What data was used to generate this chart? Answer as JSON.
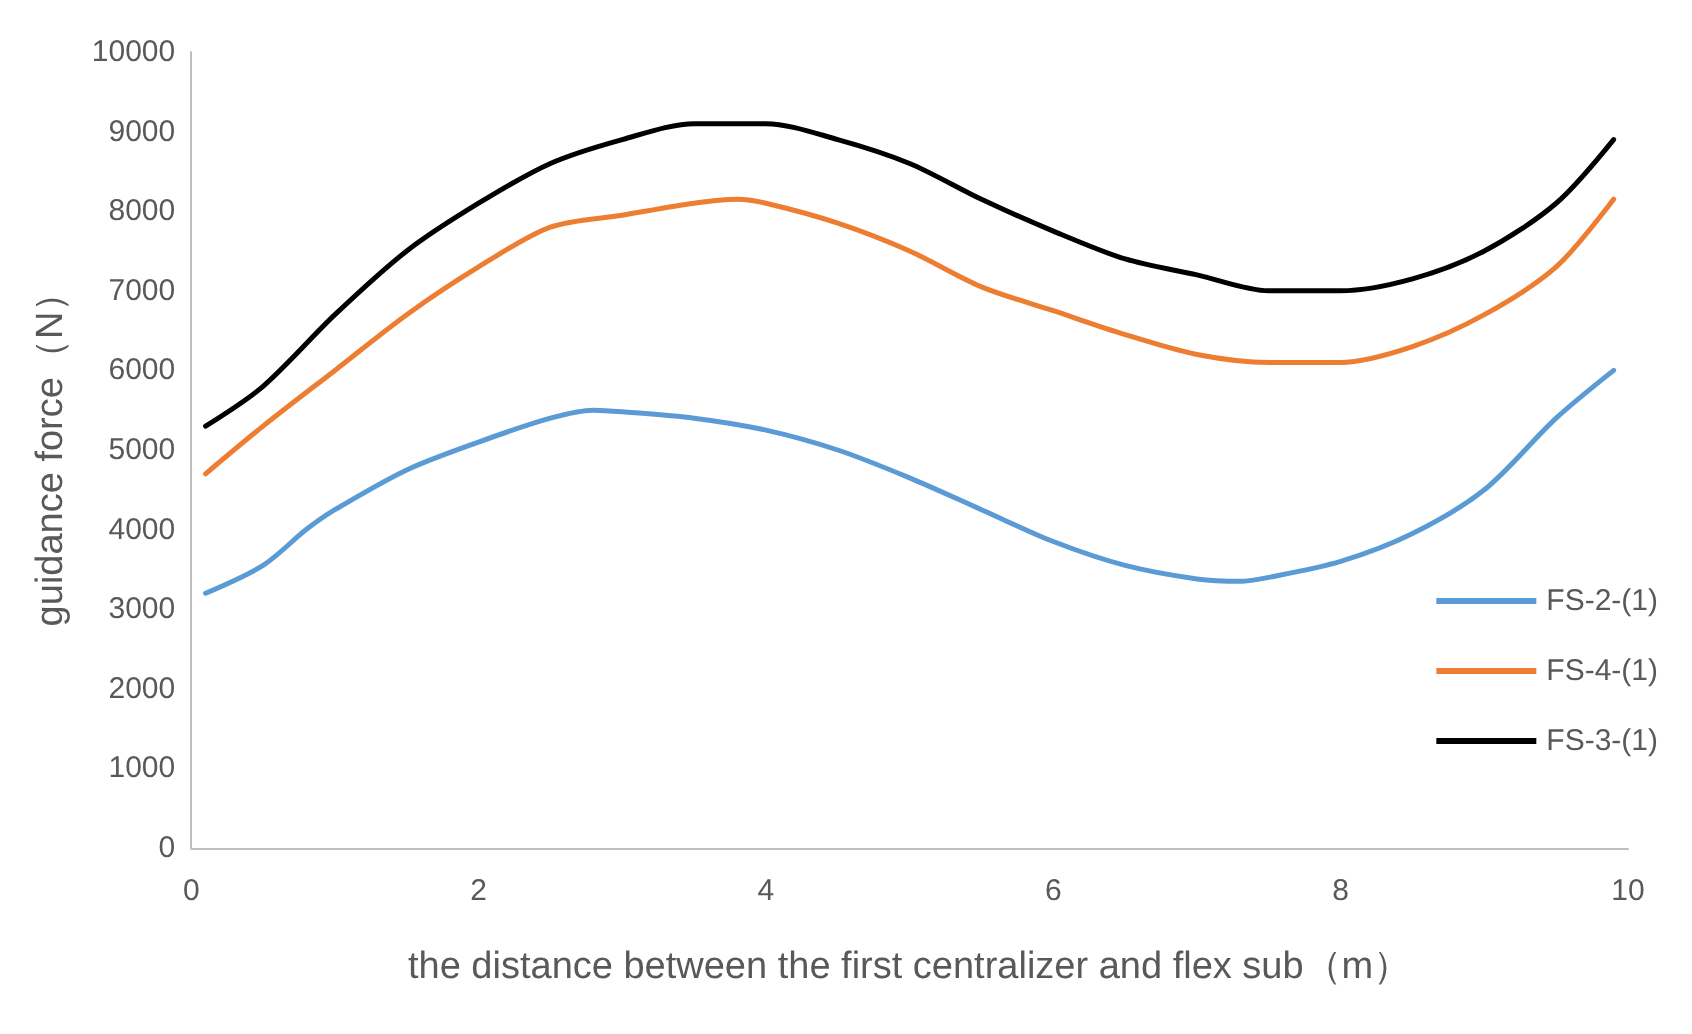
{
  "chart_data": {
    "type": "line",
    "xlabel": "the distance between the first centralizer and flex sub（m）",
    "ylabel": "guidance force（N）",
    "xlim": [
      0,
      10
    ],
    "xticks": [
      0,
      2,
      4,
      6,
      8,
      10
    ],
    "ylim": [
      0,
      10000
    ],
    "yticks": [
      0,
      1000,
      2000,
      3000,
      4000,
      5000,
      6000,
      7000,
      8000,
      9000,
      10000
    ],
    "grid": false,
    "legend": "right",
    "marker": "none",
    "line_style": "solid",
    "series": [
      {
        "name": "FS-2-(1)",
        "color": "#5b9bd5",
        "x": [
          0.1,
          0.5,
          0.8,
          1,
          1.5,
          2,
          2.5,
          2.8,
          3,
          3.5,
          4,
          4.5,
          5,
          5.5,
          6,
          6.5,
          7,
          7.3,
          7.5,
          8,
          8.5,
          9,
          9.5,
          9.9
        ],
        "values": [
          3200,
          3550,
          4000,
          4250,
          4750,
          5100,
          5400,
          5500,
          5480,
          5400,
          5250,
          5000,
          4650,
          4250,
          3850,
          3550,
          3380,
          3350,
          3400,
          3600,
          3950,
          4500,
          5400,
          6000
        ]
      },
      {
        "name": "FS-4-(1)",
        "color": "#ed7d31",
        "x": [
          0.1,
          0.5,
          1,
          1.5,
          2,
          2.5,
          3,
          3.5,
          3.8,
          4,
          4.5,
          5,
          5.5,
          6,
          6.5,
          7,
          7.5,
          8,
          8.5,
          9,
          9.5,
          9.9
        ],
        "values": [
          4700,
          5300,
          6000,
          6700,
          7300,
          7800,
          7950,
          8100,
          8150,
          8100,
          7850,
          7500,
          7050,
          6750,
          6450,
          6200,
          6100,
          6100,
          6300,
          6700,
          7300,
          8150
        ]
      },
      {
        "name": "FS-3-(1)",
        "color": "#000000",
        "x": [
          0.1,
          0.5,
          1,
          1.5,
          2,
          2.5,
          3,
          3.5,
          4,
          4.5,
          5,
          5.5,
          6,
          6.5,
          7,
          7.5,
          8,
          8.5,
          9,
          9.5,
          9.9
        ],
        "values": [
          5300,
          5800,
          6700,
          7500,
          8100,
          8600,
          8900,
          9100,
          9100,
          8900,
          8600,
          8150,
          7750,
          7400,
          7200,
          7000,
          7000,
          7150,
          7500,
          8100,
          8900
        ]
      }
    ]
  }
}
